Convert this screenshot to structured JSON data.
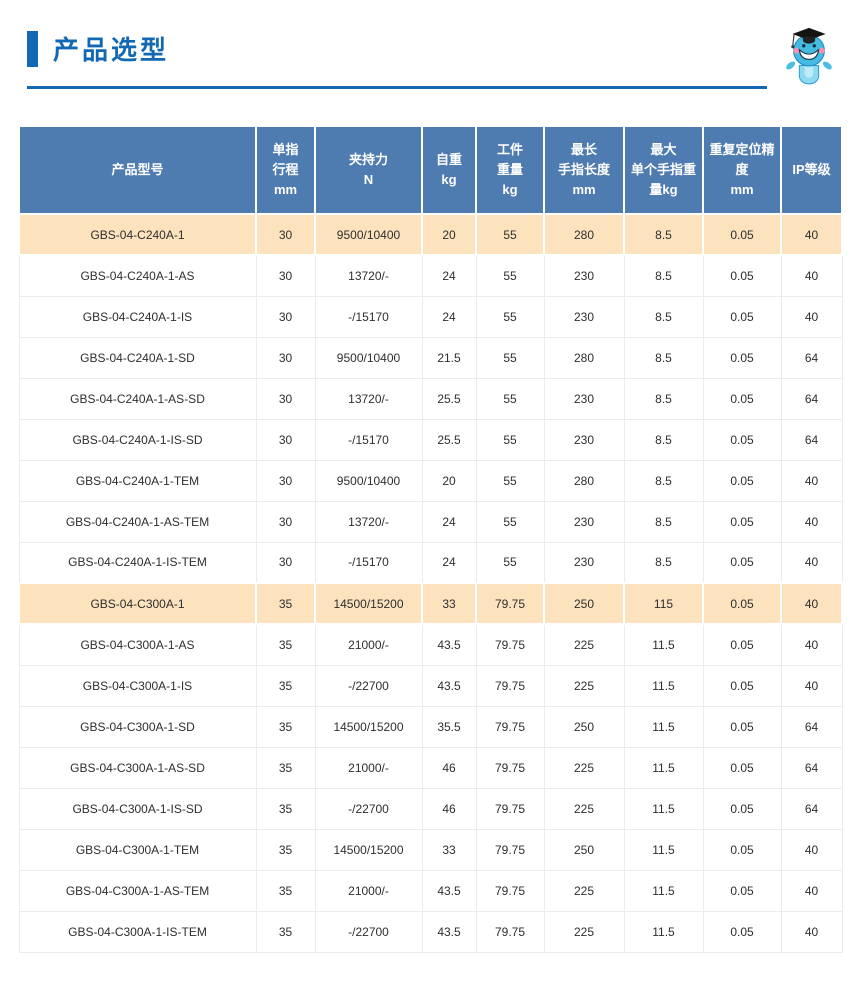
{
  "page": {
    "title": "产品选型"
  },
  "colors": {
    "accent_blue": "#1268b3",
    "table_header_bg": "#4e7bb0",
    "highlight_row_bg": "#fce3bd"
  },
  "icons": {
    "mascot": "graduate-mascot-icon"
  },
  "table": {
    "columns": [
      {
        "id": "model",
        "lines": [
          "产品型号"
        ]
      },
      {
        "id": "stroke",
        "lines": [
          "单指",
          "行程",
          "mm"
        ]
      },
      {
        "id": "force",
        "lines": [
          "夹持力",
          "N"
        ]
      },
      {
        "id": "weight",
        "lines": [
          "自重",
          "kg"
        ]
      },
      {
        "id": "workpiece",
        "lines": [
          "工件",
          "重量",
          "kg"
        ]
      },
      {
        "id": "finger-length",
        "lines": [
          "最长",
          "手指长度",
          "mm"
        ]
      },
      {
        "id": "finger-weight",
        "lines": [
          "最大",
          "单个手指重",
          "量kg"
        ]
      },
      {
        "id": "precision",
        "lines": [
          "重复定位精度",
          "mm"
        ]
      },
      {
        "id": "ip-rating",
        "lines": [
          "IP等级"
        ]
      }
    ],
    "rows": [
      {
        "highlight": true,
        "cells": [
          "GBS-04-C240A-1",
          "30",
          "9500/10400",
          "20",
          "55",
          "280",
          "8.5",
          "0.05",
          "40"
        ]
      },
      {
        "highlight": false,
        "cells": [
          "GBS-04-C240A-1-AS",
          "30",
          "13720/-",
          "24",
          "55",
          "230",
          "8.5",
          "0.05",
          "40"
        ]
      },
      {
        "highlight": false,
        "cells": [
          "GBS-04-C240A-1-IS",
          "30",
          "-/15170",
          "24",
          "55",
          "230",
          "8.5",
          "0.05",
          "40"
        ]
      },
      {
        "highlight": false,
        "cells": [
          "GBS-04-C240A-1-SD",
          "30",
          "9500/10400",
          "21.5",
          "55",
          "280",
          "8.5",
          "0.05",
          "64"
        ]
      },
      {
        "highlight": false,
        "cells": [
          "GBS-04-C240A-1-AS-SD",
          "30",
          "13720/-",
          "25.5",
          "55",
          "230",
          "8.5",
          "0.05",
          "64"
        ]
      },
      {
        "highlight": false,
        "cells": [
          "GBS-04-C240A-1-IS-SD",
          "30",
          "-/15170",
          "25.5",
          "55",
          "230",
          "8.5",
          "0.05",
          "64"
        ]
      },
      {
        "highlight": false,
        "cells": [
          "GBS-04-C240A-1-TEM",
          "30",
          "9500/10400",
          "20",
          "55",
          "280",
          "8.5",
          "0.05",
          "40"
        ]
      },
      {
        "highlight": false,
        "cells": [
          "GBS-04-C240A-1-AS-TEM",
          "30",
          "13720/-",
          "24",
          "55",
          "230",
          "8.5",
          "0.05",
          "40"
        ]
      },
      {
        "highlight": false,
        "cells": [
          "GBS-04-C240A-1-IS-TEM",
          "30",
          "-/15170",
          "24",
          "55",
          "230",
          "8.5",
          "0.05",
          "40"
        ]
      },
      {
        "highlight": true,
        "cells": [
          "GBS-04-C300A-1",
          "35",
          "14500/15200",
          "33",
          "79.75",
          "250",
          "115",
          "0.05",
          "40"
        ]
      },
      {
        "highlight": false,
        "cells": [
          "GBS-04-C300A-1-AS",
          "35",
          "21000/-",
          "43.5",
          "79.75",
          "225",
          "11.5",
          "0.05",
          "40"
        ]
      },
      {
        "highlight": false,
        "cells": [
          "GBS-04-C300A-1-IS",
          "35",
          "-/22700",
          "43.5",
          "79.75",
          "225",
          "11.5",
          "0.05",
          "40"
        ]
      },
      {
        "highlight": false,
        "cells": [
          "GBS-04-C300A-1-SD",
          "35",
          "14500/15200",
          "35.5",
          "79.75",
          "250",
          "11.5",
          "0.05",
          "64"
        ]
      },
      {
        "highlight": false,
        "cells": [
          "GBS-04-C300A-1-AS-SD",
          "35",
          "21000/-",
          "46",
          "79.75",
          "225",
          "11.5",
          "0.05",
          "64"
        ]
      },
      {
        "highlight": false,
        "cells": [
          "GBS-04-C300A-1-IS-SD",
          "35",
          "-/22700",
          "46",
          "79.75",
          "225",
          "11.5",
          "0.05",
          "64"
        ]
      },
      {
        "highlight": false,
        "cells": [
          "GBS-04-C300A-1-TEM",
          "35",
          "14500/15200",
          "33",
          "79.75",
          "250",
          "11.5",
          "0.05",
          "40"
        ]
      },
      {
        "highlight": false,
        "cells": [
          "GBS-04-C300A-1-AS-TEM",
          "35",
          "21000/-",
          "43.5",
          "79.75",
          "225",
          "11.5",
          "0.05",
          "40"
        ]
      },
      {
        "highlight": false,
        "cells": [
          "GBS-04-C300A-1-IS-TEM",
          "35",
          "-/22700",
          "43.5",
          "79.75",
          "225",
          "11.5",
          "0.05",
          "40"
        ]
      }
    ]
  }
}
